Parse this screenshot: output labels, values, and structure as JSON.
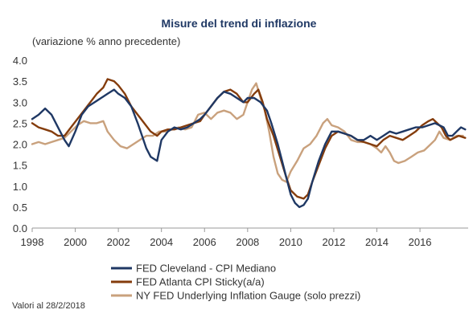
{
  "chart_data": {
    "type": "line",
    "title": "Misure del trend di inflazione",
    "subtitle": "(variazione % anno precedente)",
    "ylim": [
      0,
      4
    ],
    "xlim": [
      1998,
      2018.2
    ],
    "y_ticks": [
      "0.0",
      "0.5",
      "1.0",
      "1.5",
      "2.0",
      "2.5",
      "3.0",
      "3.5",
      "4.0"
    ],
    "y_tick_values": [
      0,
      0.5,
      1,
      1.5,
      2,
      2.5,
      3,
      3.5,
      4
    ],
    "x_ticks": [
      "1998",
      "2000",
      "2002",
      "2004",
      "2006",
      "2008",
      "2010",
      "2012",
      "2014",
      "2016"
    ],
    "x_tick_values": [
      1998,
      2000,
      2002,
      2004,
      2006,
      2008,
      2010,
      2012,
      2014,
      2016
    ],
    "grid": false,
    "legend_position": "bottom",
    "note": "Valori al 28/2/2018",
    "series": [
      {
        "name": "FED Cleveland - CPI Mediano",
        "color": "#1f3864",
        "points": [
          [
            1998.0,
            2.6
          ],
          [
            1998.3,
            2.7
          ],
          [
            1998.6,
            2.85
          ],
          [
            1998.9,
            2.7
          ],
          [
            1999.2,
            2.4
          ],
          [
            1999.5,
            2.1
          ],
          [
            1999.7,
            1.95
          ],
          [
            2000.0,
            2.3
          ],
          [
            2000.3,
            2.7
          ],
          [
            2000.6,
            2.9
          ],
          [
            2000.9,
            3.0
          ],
          [
            2001.2,
            3.1
          ],
          [
            2001.5,
            3.2
          ],
          [
            2001.8,
            3.3
          ],
          [
            2002.0,
            3.2
          ],
          [
            2002.3,
            3.1
          ],
          [
            2002.6,
            2.9
          ],
          [
            2002.9,
            2.5
          ],
          [
            2003.1,
            2.2
          ],
          [
            2003.3,
            1.9
          ],
          [
            2003.5,
            1.7
          ],
          [
            2003.8,
            1.6
          ],
          [
            2004.0,
            2.1
          ],
          [
            2004.3,
            2.3
          ],
          [
            2004.6,
            2.4
          ],
          [
            2004.9,
            2.35
          ],
          [
            2005.2,
            2.4
          ],
          [
            2005.5,
            2.5
          ],
          [
            2005.8,
            2.6
          ],
          [
            2006.0,
            2.7
          ],
          [
            2006.3,
            2.9
          ],
          [
            2006.6,
            3.1
          ],
          [
            2006.9,
            3.25
          ],
          [
            2007.2,
            3.2
          ],
          [
            2007.5,
            3.1
          ],
          [
            2007.8,
            3.0
          ],
          [
            2008.0,
            3.1
          ],
          [
            2008.3,
            3.1
          ],
          [
            2008.6,
            3.0
          ],
          [
            2008.9,
            2.8
          ],
          [
            2009.1,
            2.5
          ],
          [
            2009.4,
            2.0
          ],
          [
            2009.6,
            1.6
          ],
          [
            2009.8,
            1.2
          ],
          [
            2010.0,
            0.8
          ],
          [
            2010.2,
            0.6
          ],
          [
            2010.4,
            0.5
          ],
          [
            2010.6,
            0.55
          ],
          [
            2010.8,
            0.7
          ],
          [
            2011.0,
            1.1
          ],
          [
            2011.3,
            1.6
          ],
          [
            2011.6,
            2.0
          ],
          [
            2011.9,
            2.3
          ],
          [
            2012.2,
            2.3
          ],
          [
            2012.5,
            2.25
          ],
          [
            2012.8,
            2.2
          ],
          [
            2013.1,
            2.1
          ],
          [
            2013.4,
            2.1
          ],
          [
            2013.7,
            2.2
          ],
          [
            2014.0,
            2.1
          ],
          [
            2014.3,
            2.2
          ],
          [
            2014.6,
            2.3
          ],
          [
            2014.9,
            2.25
          ],
          [
            2015.2,
            2.3
          ],
          [
            2015.5,
            2.35
          ],
          [
            2015.8,
            2.4
          ],
          [
            2016.1,
            2.4
          ],
          [
            2016.4,
            2.45
          ],
          [
            2016.7,
            2.5
          ],
          [
            2016.9,
            2.45
          ],
          [
            2017.1,
            2.4
          ],
          [
            2017.3,
            2.2
          ],
          [
            2017.5,
            2.2
          ],
          [
            2017.7,
            2.3
          ],
          [
            2017.9,
            2.4
          ],
          [
            2018.1,
            2.35
          ]
        ]
      },
      {
        "name": "FED Atlanta CPI Sticky(a/a)",
        "color": "#843c0c",
        "points": [
          [
            1998.0,
            2.5
          ],
          [
            1998.3,
            2.4
          ],
          [
            1998.6,
            2.35
          ],
          [
            1998.9,
            2.3
          ],
          [
            1999.2,
            2.2
          ],
          [
            1999.5,
            2.2
          ],
          [
            1999.8,
            2.4
          ],
          [
            2000.1,
            2.6
          ],
          [
            2000.4,
            2.8
          ],
          [
            2000.7,
            3.0
          ],
          [
            2001.0,
            3.2
          ],
          [
            2001.3,
            3.35
          ],
          [
            2001.5,
            3.55
          ],
          [
            2001.8,
            3.5
          ],
          [
            2002.0,
            3.4
          ],
          [
            2002.3,
            3.2
          ],
          [
            2002.6,
            2.9
          ],
          [
            2002.9,
            2.7
          ],
          [
            2003.2,
            2.5
          ],
          [
            2003.5,
            2.3
          ],
          [
            2003.8,
            2.2
          ],
          [
            2004.0,
            2.3
          ],
          [
            2004.3,
            2.35
          ],
          [
            2004.6,
            2.35
          ],
          [
            2004.9,
            2.4
          ],
          [
            2005.2,
            2.45
          ],
          [
            2005.5,
            2.5
          ],
          [
            2005.8,
            2.55
          ],
          [
            2006.0,
            2.7
          ],
          [
            2006.3,
            2.9
          ],
          [
            2006.6,
            3.1
          ],
          [
            2006.9,
            3.25
          ],
          [
            2007.2,
            3.3
          ],
          [
            2007.5,
            3.2
          ],
          [
            2007.8,
            3.0
          ],
          [
            2008.0,
            3.0
          ],
          [
            2008.3,
            3.2
          ],
          [
            2008.5,
            3.3
          ],
          [
            2008.7,
            3.0
          ],
          [
            2008.9,
            2.6
          ],
          [
            2009.2,
            2.2
          ],
          [
            2009.5,
            1.7
          ],
          [
            2009.8,
            1.2
          ],
          [
            2010.0,
            0.9
          ],
          [
            2010.3,
            0.75
          ],
          [
            2010.6,
            0.7
          ],
          [
            2010.8,
            0.8
          ],
          [
            2011.0,
            1.1
          ],
          [
            2011.3,
            1.5
          ],
          [
            2011.6,
            1.9
          ],
          [
            2011.9,
            2.2
          ],
          [
            2012.2,
            2.3
          ],
          [
            2012.5,
            2.25
          ],
          [
            2012.8,
            2.2
          ],
          [
            2013.1,
            2.1
          ],
          [
            2013.4,
            2.05
          ],
          [
            2013.7,
            2.0
          ],
          [
            2014.0,
            1.95
          ],
          [
            2014.3,
            2.1
          ],
          [
            2014.6,
            2.2
          ],
          [
            2014.9,
            2.15
          ],
          [
            2015.2,
            2.1
          ],
          [
            2015.5,
            2.2
          ],
          [
            2015.8,
            2.3
          ],
          [
            2016.1,
            2.45
          ],
          [
            2016.4,
            2.55
          ],
          [
            2016.6,
            2.6
          ],
          [
            2016.8,
            2.5
          ],
          [
            2017.0,
            2.4
          ],
          [
            2017.2,
            2.2
          ],
          [
            2017.4,
            2.1
          ],
          [
            2017.6,
            2.15
          ],
          [
            2017.8,
            2.2
          ],
          [
            2018.1,
            2.15
          ]
        ]
      },
      {
        "name": "NY FED Underlying Inflation Gauge (solo prezzi)",
        "color": "#c9a17d",
        "points": [
          [
            1998.0,
            2.0
          ],
          [
            1998.3,
            2.05
          ],
          [
            1998.6,
            2.0
          ],
          [
            1998.9,
            2.05
          ],
          [
            1999.2,
            2.1
          ],
          [
            1999.5,
            2.15
          ],
          [
            1999.8,
            2.3
          ],
          [
            2000.1,
            2.45
          ],
          [
            2000.4,
            2.55
          ],
          [
            2000.7,
            2.5
          ],
          [
            2001.0,
            2.5
          ],
          [
            2001.3,
            2.55
          ],
          [
            2001.5,
            2.3
          ],
          [
            2001.8,
            2.1
          ],
          [
            2002.1,
            1.95
          ],
          [
            2002.4,
            1.9
          ],
          [
            2002.7,
            2.0
          ],
          [
            2003.0,
            2.1
          ],
          [
            2003.3,
            2.2
          ],
          [
            2003.6,
            2.2
          ],
          [
            2003.9,
            2.3
          ],
          [
            2004.2,
            2.3
          ],
          [
            2004.5,
            2.35
          ],
          [
            2004.8,
            2.4
          ],
          [
            2005.1,
            2.35
          ],
          [
            2005.4,
            2.4
          ],
          [
            2005.7,
            2.7
          ],
          [
            2006.0,
            2.75
          ],
          [
            2006.3,
            2.6
          ],
          [
            2006.6,
            2.75
          ],
          [
            2006.9,
            2.8
          ],
          [
            2007.2,
            2.75
          ],
          [
            2007.5,
            2.6
          ],
          [
            2007.8,
            2.7
          ],
          [
            2008.0,
            3.0
          ],
          [
            2008.2,
            3.3
          ],
          [
            2008.4,
            3.45
          ],
          [
            2008.6,
            3.1
          ],
          [
            2008.8,
            2.8
          ],
          [
            2009.0,
            2.3
          ],
          [
            2009.2,
            1.7
          ],
          [
            2009.4,
            1.3
          ],
          [
            2009.6,
            1.15
          ],
          [
            2009.8,
            1.1
          ],
          [
            2010.0,
            1.35
          ],
          [
            2010.3,
            1.6
          ],
          [
            2010.6,
            1.9
          ],
          [
            2010.9,
            2.0
          ],
          [
            2011.2,
            2.2
          ],
          [
            2011.5,
            2.5
          ],
          [
            2011.7,
            2.6
          ],
          [
            2011.9,
            2.45
          ],
          [
            2012.2,
            2.4
          ],
          [
            2012.5,
            2.3
          ],
          [
            2012.8,
            2.1
          ],
          [
            2013.1,
            2.05
          ],
          [
            2013.4,
            2.05
          ],
          [
            2013.7,
            2.0
          ],
          [
            2014.0,
            1.9
          ],
          [
            2014.2,
            1.8
          ],
          [
            2014.4,
            1.95
          ],
          [
            2014.6,
            1.8
          ],
          [
            2014.8,
            1.6
          ],
          [
            2015.0,
            1.55
          ],
          [
            2015.3,
            1.6
          ],
          [
            2015.6,
            1.7
          ],
          [
            2015.9,
            1.8
          ],
          [
            2016.2,
            1.85
          ],
          [
            2016.5,
            2.0
          ],
          [
            2016.7,
            2.1
          ],
          [
            2016.9,
            2.3
          ],
          [
            2017.1,
            2.15
          ],
          [
            2017.4,
            2.1
          ],
          [
            2017.7,
            2.2
          ],
          [
            2018.0,
            2.2
          ]
        ]
      }
    ]
  }
}
